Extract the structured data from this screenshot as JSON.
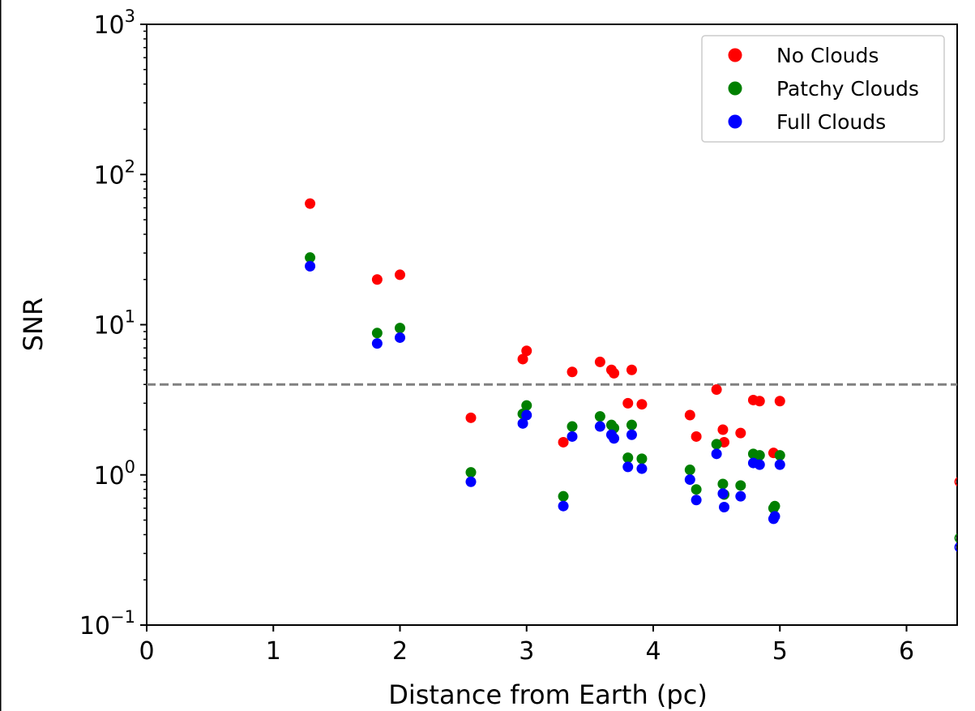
{
  "chart_data": {
    "type": "scatter",
    "xlabel": "Distance from Earth (pc)",
    "ylabel": "SNR",
    "xlim": [
      0,
      6.4
    ],
    "ylim": [
      0.1,
      1000
    ],
    "yscale": "log",
    "x_ticks": [
      0,
      1,
      2,
      3,
      4,
      5,
      6
    ],
    "y_ticks": [
      {
        "value": 0.1,
        "base": "10",
        "exp": "−1"
      },
      {
        "value": 1,
        "base": "10",
        "exp": "0"
      },
      {
        "value": 10,
        "base": "10",
        "exp": "1"
      },
      {
        "value": 100,
        "base": "10",
        "exp": "2"
      },
      {
        "value": 1000,
        "base": "10",
        "exp": "3"
      }
    ],
    "threshold": {
      "y": 4,
      "style": "dashed",
      "color": "#808080"
    },
    "legend_position": "top-right",
    "grid": false,
    "series": [
      {
        "name": "No Clouds",
        "color": "#ff0000",
        "points": [
          [
            1.29,
            64
          ],
          [
            1.82,
            20
          ],
          [
            2.0,
            21.5
          ],
          [
            2.56,
            2.4
          ],
          [
            2.97,
            5.9
          ],
          [
            3.0,
            6.7
          ],
          [
            3.29,
            1.65
          ],
          [
            3.36,
            4.85
          ],
          [
            3.58,
            5.65
          ],
          [
            3.67,
            5.0
          ],
          [
            3.69,
            4.75
          ],
          [
            3.8,
            3.0
          ],
          [
            3.83,
            5.0
          ],
          [
            3.91,
            2.95
          ],
          [
            4.29,
            2.5
          ],
          [
            4.34,
            1.8
          ],
          [
            4.5,
            3.7
          ],
          [
            4.55,
            2.0
          ],
          [
            4.56,
            1.65
          ],
          [
            4.69,
            1.9
          ],
          [
            4.79,
            3.15
          ],
          [
            4.84,
            3.1
          ],
          [
            4.95,
            1.4
          ],
          [
            5.0,
            3.1
          ]
        ],
        "offscale_points": [
          [
            6.4,
            0.9
          ]
        ]
      },
      {
        "name": "Patchy Clouds",
        "color": "#008000",
        "points": [
          [
            1.29,
            28
          ],
          [
            1.82,
            8.8
          ],
          [
            2.0,
            9.5
          ],
          [
            2.56,
            1.04
          ],
          [
            2.97,
            2.55
          ],
          [
            3.0,
            2.9
          ],
          [
            3.29,
            0.72
          ],
          [
            3.36,
            2.1
          ],
          [
            3.58,
            2.45
          ],
          [
            3.67,
            2.15
          ],
          [
            3.69,
            2.05
          ],
          [
            3.8,
            1.3
          ],
          [
            3.83,
            2.15
          ],
          [
            3.91,
            1.28
          ],
          [
            4.29,
            1.08
          ],
          [
            4.34,
            0.8
          ],
          [
            4.5,
            1.6
          ],
          [
            4.55,
            0.87
          ],
          [
            4.56,
            0.74
          ],
          [
            4.69,
            0.85
          ],
          [
            4.79,
            1.38
          ],
          [
            4.84,
            1.35
          ],
          [
            4.95,
            0.6
          ],
          [
            4.96,
            0.62
          ],
          [
            5.0,
            1.35
          ]
        ],
        "offscale_points": [
          [
            6.4,
            0.38
          ]
        ]
      },
      {
        "name": "Full Clouds",
        "color": "#0000ff",
        "points": [
          [
            1.29,
            24.5
          ],
          [
            1.82,
            7.5
          ],
          [
            2.0,
            8.2
          ],
          [
            2.56,
            0.9
          ],
          [
            2.97,
            2.2
          ],
          [
            3.0,
            2.5
          ],
          [
            3.29,
            0.62
          ],
          [
            3.36,
            1.8
          ],
          [
            3.58,
            2.1
          ],
          [
            3.67,
            1.85
          ],
          [
            3.69,
            1.75
          ],
          [
            3.8,
            1.13
          ],
          [
            3.83,
            1.85
          ],
          [
            3.91,
            1.1
          ],
          [
            4.29,
            0.93
          ],
          [
            4.34,
            0.68
          ],
          [
            4.5,
            1.38
          ],
          [
            4.55,
            0.75
          ],
          [
            4.56,
            0.61
          ],
          [
            4.69,
            0.72
          ],
          [
            4.79,
            1.2
          ],
          [
            4.84,
            1.17
          ],
          [
            4.95,
            0.51
          ],
          [
            4.96,
            0.53
          ],
          [
            5.0,
            1.17
          ]
        ],
        "offscale_points": [
          [
            6.4,
            0.33
          ]
        ]
      }
    ]
  }
}
